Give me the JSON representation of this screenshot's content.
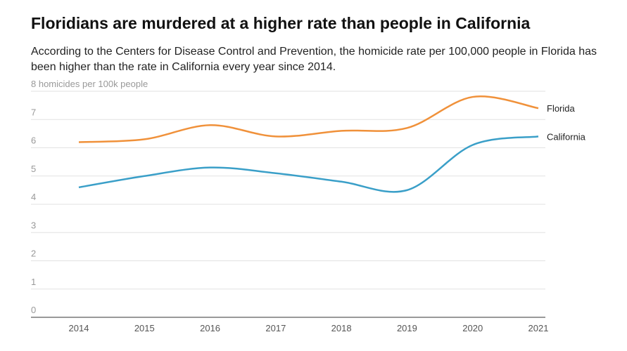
{
  "chart_data": {
    "type": "line",
    "title": "Floridians are murdered at a higher rate than people in California",
    "subtitle": "According to the Centers for Disease Control and Prevention, the homicide rate per 100,000 people in Florida has been higher than the rate in California every year since 2014.",
    "categories": [
      "2014",
      "2015",
      "2016",
      "2017",
      "2018",
      "2019",
      "2020",
      "2021"
    ],
    "series": [
      {
        "name": "Florida",
        "color": "#f0913a",
        "values": [
          6.2,
          6.3,
          6.8,
          6.4,
          6.6,
          6.7,
          7.8,
          7.4
        ]
      },
      {
        "name": "California",
        "color": "#3a9fc8",
        "values": [
          4.6,
          5.0,
          5.3,
          5.1,
          4.8,
          4.5,
          6.1,
          6.4
        ]
      }
    ],
    "ylim": [
      0,
      8
    ],
    "yticks": [
      0,
      1,
      2,
      3,
      4,
      5,
      6,
      7,
      {
        "value": 8,
        "label": "8 homicides per 100k people"
      }
    ],
    "grid": true
  }
}
